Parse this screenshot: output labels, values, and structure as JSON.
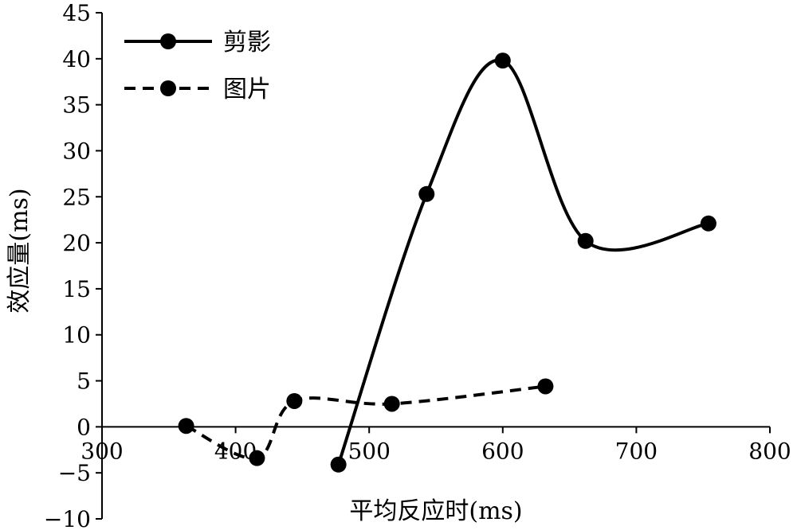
{
  "chart_data": {
    "type": "line",
    "xlabel": "平均反应时(ms)",
    "ylabel": "效应量(ms)",
    "xlim": [
      300,
      800
    ],
    "ylim": [
      -10,
      45
    ],
    "xticks": [
      300,
      400,
      500,
      600,
      700,
      800
    ],
    "yticks": [
      -10,
      -5,
      0,
      5,
      10,
      15,
      20,
      25,
      30,
      35,
      40,
      45
    ],
    "xtick_labels": [
      "300",
      "400",
      "500",
      "600",
      "700",
      "800"
    ],
    "ytick_labels": [
      "−10",
      "−5",
      "0",
      "5",
      "10",
      "15",
      "20",
      "25",
      "30",
      "35",
      "40",
      "45"
    ],
    "grid": false,
    "smooth": true,
    "legend": {
      "position": "top-left"
    },
    "series": [
      {
        "name": "剪影",
        "style": "solid",
        "color": "#000000",
        "points": [
          [
            477,
            -4.1
          ],
          [
            543,
            25.3
          ],
          [
            600,
            39.8
          ],
          [
            662,
            20.2
          ],
          [
            754,
            22.1
          ]
        ]
      },
      {
        "name": "图片",
        "style": "dashed",
        "color": "#000000",
        "points": [
          [
            363,
            0.1
          ],
          [
            416,
            -3.4
          ],
          [
            444,
            2.8
          ],
          [
            517,
            2.5
          ],
          [
            632,
            4.4
          ]
        ]
      }
    ]
  }
}
